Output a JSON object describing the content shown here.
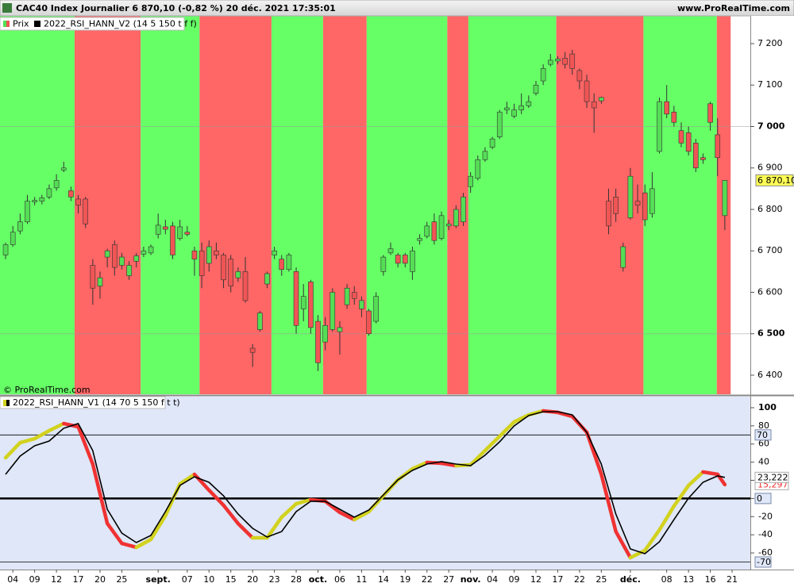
{
  "header": {
    "title": "CAC40 Index Journalier 6 870,10 (-0,82 %) 20 déc. 2021 17:35:01",
    "site": "www.ProRealTime.com"
  },
  "chart_data": [
    {
      "type": "candlestick",
      "legend": [
        "Prix",
        "2022_RSI_HANN_V2 (14 5 150 t f f)"
      ],
      "watermark": "© ProRealTime.com",
      "categories": [
        null,
        "04",
        null,
        null,
        "09",
        null,
        null,
        "12",
        null,
        null,
        "17",
        null,
        null,
        "20",
        null,
        null,
        "25",
        null,
        null,
        null,
        null,
        "sept.",
        null,
        null,
        null,
        "07",
        null,
        null,
        "10",
        null,
        null,
        "15",
        null,
        null,
        "20",
        null,
        null,
        "23",
        null,
        null,
        "28",
        null,
        null,
        "oct.",
        null,
        null,
        "06",
        null,
        null,
        "11",
        null,
        null,
        "14",
        null,
        null,
        "19",
        null,
        null,
        "22",
        null,
        null,
        "27",
        null,
        null,
        "nov.",
        null,
        null,
        "04",
        null,
        null,
        "09",
        null,
        null,
        "12",
        null,
        null,
        "17",
        null,
        null,
        "22",
        null,
        null,
        "25",
        null,
        null,
        null,
        "déc.",
        null,
        null,
        null,
        null,
        "08",
        null,
        null,
        "13",
        null,
        null,
        "16",
        null,
        null,
        "21"
      ],
      "open": [
        6690,
        6715,
        6748,
        6770,
        6818,
        6820,
        6830,
        6852,
        6895,
        6845,
        6825,
        6825,
        6665,
        6615,
        6685,
        6715,
        6665,
        6640,
        6675,
        6692,
        6695,
        6740,
        6758,
        6760,
        6730,
        6745,
        6700,
        6700,
        6670,
        6700,
        6690,
        6680,
        6635,
        6650,
        6465,
        6510,
        6620,
        6690,
        6680,
        6655,
        6650,
        6560,
        6625,
        6530,
        6480,
        6510,
        6505,
        6570,
        6600,
        6560,
        6555,
        6530,
        6650,
        6695,
        6690,
        6690,
        6650,
        6725,
        6735,
        6770,
        6730,
        6760,
        6760,
        6770,
        6855,
        6875,
        6920,
        6950,
        6975,
        7040,
        7025,
        7040,
        7050,
        7080,
        7110,
        7150,
        7158,
        7165,
        7175,
        7135,
        7110,
        7060,
        7062,
        6820,
        6830,
        6660,
        6780,
        6820,
        6840,
        6790,
        6940,
        7060,
        7035,
        6990,
        6985,
        6960,
        6925,
        7055,
        6980,
        6785,
        null
      ],
      "high": [
        6720,
        6760,
        6790,
        6835,
        6830,
        6835,
        6860,
        6885,
        6915,
        6855,
        6835,
        6830,
        6680,
        6650,
        6705,
        6725,
        6695,
        6675,
        6695,
        6710,
        6715,
        6790,
        6775,
        6770,
        6775,
        6760,
        6710,
        6720,
        6725,
        6720,
        6695,
        6690,
        6660,
        6685,
        6475,
        6555,
        6650,
        6710,
        6690,
        6695,
        6660,
        6620,
        6630,
        6545,
        6540,
        6610,
        6530,
        6620,
        6615,
        6590,
        6560,
        6600,
        6690,
        6720,
        6695,
        6695,
        6710,
        6740,
        6770,
        6790,
        6795,
        6775,
        6810,
        6840,
        6890,
        6930,
        6950,
        6975,
        7040,
        7060,
        7055,
        7080,
        7075,
        7110,
        7150,
        7175,
        7170,
        7180,
        7185,
        7140,
        7125,
        7080,
        7072,
        6850,
        6850,
        6720,
        6900,
        6860,
        6860,
        6890,
        7070,
        7100,
        7050,
        7010,
        7000,
        6970,
        6935,
        7060,
        7020,
        6870.1,
        null
      ],
      "low": [
        6680,
        6710,
        6740,
        6765,
        6810,
        6812,
        6825,
        6845,
        6890,
        6820,
        6790,
        6755,
        6570,
        6585,
        6660,
        6640,
        6655,
        6630,
        6660,
        6685,
        6690,
        6730,
        6740,
        6680,
        6725,
        6735,
        6640,
        6610,
        6650,
        6680,
        6610,
        6600,
        6625,
        6575,
        6420,
        6505,
        6610,
        6680,
        6640,
        6650,
        6500,
        6530,
        6500,
        6410,
        6460,
        6505,
        6450,
        6560,
        6570,
        6540,
        6495,
        6525,
        6640,
        6690,
        6660,
        6660,
        6630,
        6715,
        6730,
        6715,
        6725,
        6750,
        6755,
        6760,
        6840,
        6870,
        6915,
        6945,
        6970,
        7030,
        7020,
        7030,
        7045,
        7075,
        7100,
        7145,
        7150,
        7140,
        7125,
        7090,
        7045,
        6985,
        7055,
        6740,
        6770,
        6650,
        6775,
        6790,
        6760,
        6780,
        6935,
        7020,
        7000,
        6950,
        6930,
        6890,
        6910,
        6990,
        6880,
        6750,
        null
      ],
      "close": [
        6715,
        6745,
        6770,
        6820,
        6822,
        6828,
        6850,
        6870,
        6900,
        6830,
        6810,
        6765,
        6610,
        6635,
        6700,
        6660,
        6685,
        6665,
        6688,
        6700,
        6710,
        6762,
        6752,
        6690,
        6758,
        6740,
        6680,
        6640,
        6710,
        6690,
        6630,
        6615,
        6650,
        6580,
        6455,
        6550,
        6645,
        6700,
        6655,
        6690,
        6520,
        6590,
        6515,
        6430,
        6520,
        6600,
        6515,
        6610,
        6585,
        6580,
        6500,
        6590,
        6685,
        6705,
        6670,
        6670,
        6700,
        6730,
        6760,
        6725,
        6785,
        6765,
        6800,
        6830,
        6880,
        6920,
        6940,
        6970,
        7035,
        7045,
        7040,
        7050,
        7060,
        7100,
        7140,
        7160,
        7163,
        7150,
        7140,
        7110,
        7060,
        7045,
        7070,
        6760,
        6790,
        6710,
        6880,
        6810,
        6775,
        6850,
        7060,
        7030,
        7010,
        6960,
        6940,
        6900,
        6920,
        7010,
        6925,
        6870.1,
        null
      ],
      "up_color": "#55dd55",
      "down_color": "#f05555",
      "outline_color": "#333333",
      "bands": [
        {
          "from": -0.77,
          "to": 9.5,
          "color": "#66ff66"
        },
        {
          "from": 9.5,
          "to": 18.6,
          "color": "#ff6666"
        },
        {
          "from": 18.6,
          "to": 26.7,
          "color": "#66ff66"
        },
        {
          "from": 26.7,
          "to": 36.6,
          "color": "#ff6666"
        },
        {
          "from": 36.6,
          "to": 43.7,
          "color": "#66ff66"
        },
        {
          "from": 43.7,
          "to": 49.7,
          "color": "#ff6666"
        },
        {
          "from": 49.7,
          "to": 60.8,
          "color": "#66ff66"
        },
        {
          "from": 60.8,
          "to": 63.7,
          "color": "#ff6666"
        },
        {
          "from": 63.7,
          "to": 75.8,
          "color": "#66ff66"
        },
        {
          "from": 75.8,
          "to": 87.8,
          "color": "#ff6666"
        },
        {
          "from": 87.8,
          "to": 97.9,
          "color": "#66ff66"
        },
        {
          "from": 97.9,
          "to": 99.8,
          "color": "#ff6666"
        }
      ],
      "xlim": [
        -0.77,
        102.51
      ],
      "ylim": [
        6354,
        7267
      ],
      "yticks": [
        {
          "value": 7200,
          "label": "7 200"
        },
        {
          "value": 7100,
          "label": "7 100"
        },
        {
          "value": 7000,
          "label": "7 000"
        },
        {
          "value": 6900,
          "label": "6 900"
        },
        {
          "value": 6800,
          "label": "6 800"
        },
        {
          "value": 6700,
          "label": "6 700"
        },
        {
          "value": 6600,
          "label": "6 600"
        },
        {
          "value": 6500,
          "label": "6 500"
        },
        {
          "value": 6400,
          "label": "6 400"
        }
      ],
      "gridlines": [
        7000,
        6500
      ],
      "last_price": {
        "value": 6870.1,
        "label": "6 870,10"
      }
    },
    {
      "type": "line",
      "title": "2022_RSI_HANN_V1 (14 70 5 150 f t t)",
      "x": [
        0,
        2,
        4,
        6,
        8,
        10,
        12,
        14,
        16,
        18,
        20,
        22,
        24,
        26,
        28,
        30,
        32,
        34,
        36,
        38,
        40,
        42,
        44,
        46,
        48,
        50,
        52,
        54,
        56,
        58,
        60,
        62,
        64,
        66,
        68,
        70,
        72,
        74,
        76,
        78,
        80,
        82,
        84,
        86,
        88,
        90,
        92,
        94,
        96,
        98,
        99
      ],
      "series": [
        {
          "up_color": "#d2d21e",
          "down_color": "#f03232",
          "width": 4.5,
          "end_label": "15,297",
          "values": [
            44.9,
            61.5,
            65.9,
            74.7,
            82.5,
            79.0,
            37.9,
            -27.6,
            -49.5,
            -53.8,
            -45.1,
            -18.9,
            16.1,
            26.6,
            9.1,
            -7.5,
            -27.6,
            -43.4,
            -43.4,
            -20.6,
            -5.8,
            -1.4,
            -3.1,
            -15.4,
            -23.3,
            -14.5,
            3.0,
            20.5,
            32.7,
            39.7,
            38.8,
            36.2,
            37.1,
            52.8,
            68.5,
            84.3,
            92.1,
            96.5,
            94.8,
            90.4,
            72.9,
            26.6,
            -36.4,
            -65.2,
            -57.3,
            -34.6,
            -8.4,
            14.3,
            29.2,
            26.6,
            15.297
          ]
        },
        {
          "color": "#000000",
          "width": 1.6,
          "end_label": "23,222",
          "values": [
            26.6,
            46.7,
            58.0,
            63.3,
            77.3,
            82.5,
            52.8,
            -11.9,
            -38.1,
            -48.6,
            -40.7,
            -14.5,
            14.3,
            23.9,
            17.8,
            3.0,
            -17.1,
            -32.9,
            -42.5,
            -36.4,
            -14.5,
            -3.1,
            -3.1,
            -11.9,
            -20.6,
            -12.8,
            3.8,
            20.5,
            30.9,
            37.9,
            40.6,
            37.9,
            36.2,
            47.6,
            62.4,
            79.9,
            91.3,
            95.6,
            95.6,
            92.1,
            72.9,
            37.9,
            -17.1,
            -55.6,
            -60.8,
            -47.7,
            -23.3,
            0.3,
            17.8,
            24.8,
            23.222
          ]
        }
      ],
      "ylim": [
        -78.3,
        112.2
      ],
      "yticks": [
        100,
        80,
        60,
        40,
        20,
        0,
        -20,
        -40,
        -60
      ],
      "levels": [
        70,
        0,
        -70
      ]
    }
  ]
}
